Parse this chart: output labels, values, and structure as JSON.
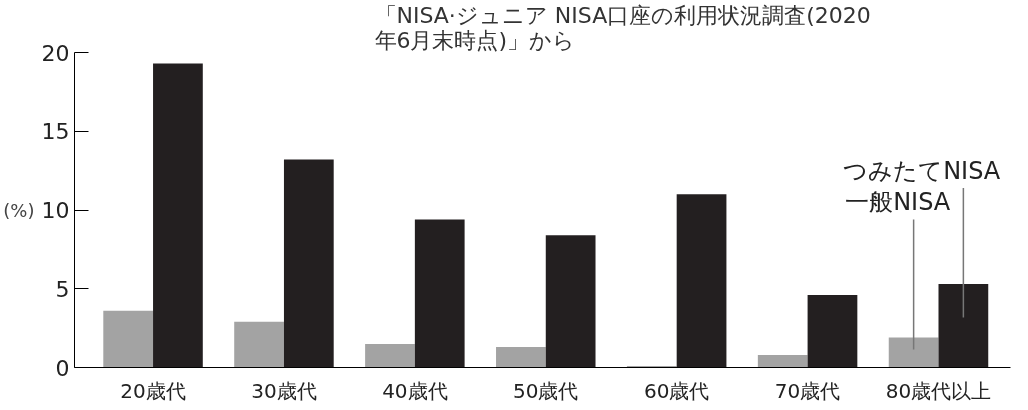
{
  "chart_data": {
    "type": "bar",
    "ylabel": "(%)",
    "annotations": [
      "「NISA·ジュニア NISA口座の利用状況調査(2020年6月末時点)」から"
    ],
    "categories": [
      "20歳代",
      "30歳代",
      "40歳代",
      "50歳代",
      "60歳代",
      "70歳代",
      "80歳代以上"
    ],
    "series": [
      {
        "name": "一般NISA",
        "color": "#a3a3a3",
        "values": [
          3.6,
          2.9,
          1.5,
          1.3,
          0.1,
          0.8,
          1.9
        ]
      },
      {
        "name": "つみたてNISA",
        "color": "#231f20",
        "values": [
          19.3,
          13.2,
          9.4,
          8.4,
          11.0,
          4.6,
          5.3
        ]
      }
    ],
    "ylim": [
      0,
      20
    ],
    "yticks": [
      0,
      5,
      10,
      15,
      20
    ],
    "grid": false
  }
}
